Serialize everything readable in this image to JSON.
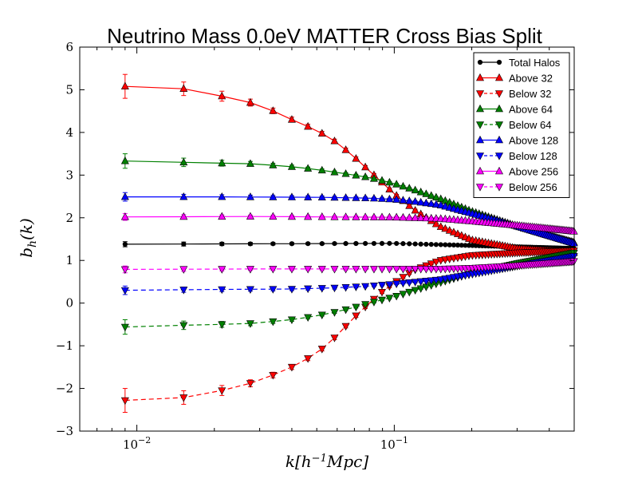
{
  "chart_data": {
    "type": "line",
    "title": "Neutrino Mass 0.0eV MATTER Cross Bias Split",
    "xlabel": "k[h⁻¹Mpc]",
    "ylabel": "b_h(k)",
    "xscale": "log",
    "xlim": [
      0.006,
      0.5
    ],
    "ylim": [
      -3,
      6
    ],
    "yticks": [
      "−3",
      "−2",
      "−1",
      "0",
      "1",
      "2",
      "3",
      "4",
      "5",
      "6"
    ],
    "xticks": [
      {
        "value": 0.01,
        "base": "10",
        "exp": "−2"
      },
      {
        "value": 0.1,
        "base": "10",
        "exp": "−1"
      }
    ],
    "legend_position": "upper right",
    "series": [
      {
        "name": "Total Halos",
        "color": "#000000",
        "marker": "circle",
        "linestyle": "solid",
        "anchors": [
          [
            0.009,
            1.38
          ],
          [
            0.1,
            1.4
          ],
          [
            0.2,
            1.35
          ],
          [
            0.5,
            1.28
          ]
        ],
        "err_anchors": [
          [
            0.009,
            0.06
          ],
          [
            0.03,
            0.03
          ],
          [
            0.1,
            0.01
          ],
          [
            0.5,
            0.01
          ]
        ]
      },
      {
        "name": "Above 32",
        "color": "#ff0000",
        "marker": "triangle-up",
        "linestyle": "solid",
        "anchors": [
          [
            0.009,
            5.08
          ],
          [
            0.015,
            5.03
          ],
          [
            0.021,
            4.86
          ],
          [
            0.027,
            4.72
          ],
          [
            0.034,
            4.5
          ],
          [
            0.041,
            4.27
          ],
          [
            0.05,
            4.05
          ],
          [
            0.06,
            3.76
          ],
          [
            0.07,
            3.42
          ],
          [
            0.08,
            3.1
          ],
          [
            0.09,
            2.82
          ],
          [
            0.1,
            2.56
          ],
          [
            0.12,
            2.18
          ],
          [
            0.15,
            1.8
          ],
          [
            0.2,
            1.48
          ],
          [
            0.3,
            1.28
          ],
          [
            0.5,
            1.18
          ]
        ],
        "err_anchors": [
          [
            0.009,
            0.28
          ],
          [
            0.015,
            0.16
          ],
          [
            0.021,
            0.12
          ],
          [
            0.03,
            0.07
          ],
          [
            0.05,
            0.05
          ],
          [
            0.1,
            0.03
          ],
          [
            0.5,
            0.01
          ]
        ]
      },
      {
        "name": "Below 32",
        "color": "#ff0000",
        "marker": "triangle-down",
        "linestyle": "dashed",
        "anchors": [
          [
            0.009,
            -2.28
          ],
          [
            0.015,
            -2.22
          ],
          [
            0.021,
            -2.06
          ],
          [
            0.027,
            -1.9
          ],
          [
            0.034,
            -1.68
          ],
          [
            0.041,
            -1.47
          ],
          [
            0.048,
            -1.24
          ],
          [
            0.055,
            -0.98
          ],
          [
            0.062,
            -0.66
          ],
          [
            0.07,
            -0.33
          ],
          [
            0.08,
            0.0
          ],
          [
            0.09,
            0.27
          ],
          [
            0.1,
            0.48
          ],
          [
            0.12,
            0.78
          ],
          [
            0.15,
            1.0
          ],
          [
            0.2,
            1.12
          ],
          [
            0.3,
            1.18
          ],
          [
            0.5,
            1.23
          ]
        ],
        "err_anchors": [
          [
            0.009,
            0.28
          ],
          [
            0.015,
            0.16
          ],
          [
            0.021,
            0.12
          ],
          [
            0.03,
            0.07
          ],
          [
            0.05,
            0.05
          ],
          [
            0.1,
            0.03
          ],
          [
            0.5,
            0.01
          ]
        ]
      },
      {
        "name": "Above 64",
        "color": "#008000",
        "marker": "triangle-up",
        "linestyle": "solid",
        "anchors": [
          [
            0.009,
            3.33
          ],
          [
            0.015,
            3.3
          ],
          [
            0.021,
            3.28
          ],
          [
            0.027,
            3.27
          ],
          [
            0.034,
            3.23
          ],
          [
            0.041,
            3.19
          ],
          [
            0.05,
            3.13
          ],
          [
            0.06,
            3.06
          ],
          [
            0.07,
            3.0
          ],
          [
            0.08,
            2.94
          ],
          [
            0.09,
            2.87
          ],
          [
            0.1,
            2.8
          ],
          [
            0.12,
            2.65
          ],
          [
            0.15,
            2.45
          ],
          [
            0.2,
            2.15
          ],
          [
            0.3,
            1.8
          ],
          [
            0.5,
            1.42
          ]
        ],
        "err_anchors": [
          [
            0.009,
            0.17
          ],
          [
            0.015,
            0.1
          ],
          [
            0.021,
            0.07
          ],
          [
            0.03,
            0.05
          ],
          [
            0.05,
            0.03
          ],
          [
            0.1,
            0.02
          ],
          [
            0.5,
            0.01
          ]
        ]
      },
      {
        "name": "Below 64",
        "color": "#008000",
        "marker": "triangle-down",
        "linestyle": "dashed",
        "anchors": [
          [
            0.009,
            -0.56
          ],
          [
            0.015,
            -0.52
          ],
          [
            0.021,
            -0.5
          ],
          [
            0.027,
            -0.48
          ],
          [
            0.034,
            -0.43
          ],
          [
            0.041,
            -0.38
          ],
          [
            0.05,
            -0.3
          ],
          [
            0.06,
            -0.2
          ],
          [
            0.07,
            -0.1
          ],
          [
            0.08,
            0.0
          ],
          [
            0.09,
            0.08
          ],
          [
            0.1,
            0.15
          ],
          [
            0.12,
            0.3
          ],
          [
            0.15,
            0.48
          ],
          [
            0.2,
            0.7
          ],
          [
            0.3,
            0.93
          ],
          [
            0.5,
            1.18
          ]
        ],
        "err_anchors": [
          [
            0.009,
            0.17
          ],
          [
            0.015,
            0.1
          ],
          [
            0.021,
            0.07
          ],
          [
            0.03,
            0.05
          ],
          [
            0.05,
            0.03
          ],
          [
            0.1,
            0.02
          ],
          [
            0.5,
            0.01
          ]
        ]
      },
      {
        "name": "Above 128",
        "color": "#0000ff",
        "marker": "triangle-up",
        "linestyle": "solid",
        "anchors": [
          [
            0.009,
            2.49
          ],
          [
            0.02,
            2.49
          ],
          [
            0.05,
            2.48
          ],
          [
            0.08,
            2.46
          ],
          [
            0.1,
            2.43
          ],
          [
            0.12,
            2.38
          ],
          [
            0.15,
            2.3
          ],
          [
            0.2,
            2.1
          ],
          [
            0.3,
            1.8
          ],
          [
            0.5,
            1.4
          ]
        ],
        "err_anchors": [
          [
            0.009,
            0.1
          ],
          [
            0.015,
            0.06
          ],
          [
            0.03,
            0.04
          ],
          [
            0.1,
            0.02
          ],
          [
            0.5,
            0.01
          ]
        ]
      },
      {
        "name": "Below 128",
        "color": "#0000ff",
        "marker": "triangle-down",
        "linestyle": "dashed",
        "anchors": [
          [
            0.009,
            0.3
          ],
          [
            0.02,
            0.32
          ],
          [
            0.04,
            0.33
          ],
          [
            0.06,
            0.36
          ],
          [
            0.08,
            0.4
          ],
          [
            0.1,
            0.45
          ],
          [
            0.15,
            0.55
          ],
          [
            0.2,
            0.68
          ],
          [
            0.3,
            0.87
          ],
          [
            0.5,
            1.1
          ]
        ],
        "err_anchors": [
          [
            0.009,
            0.1
          ],
          [
            0.015,
            0.06
          ],
          [
            0.03,
            0.04
          ],
          [
            0.1,
            0.02
          ],
          [
            0.5,
            0.01
          ]
        ]
      },
      {
        "name": "Above 256",
        "color": "#ff00ff",
        "marker": "triangle-up",
        "linestyle": "solid",
        "anchors": [
          [
            0.009,
            2.02
          ],
          [
            0.03,
            2.03
          ],
          [
            0.1,
            2.01
          ],
          [
            0.15,
            1.98
          ],
          [
            0.2,
            1.92
          ],
          [
            0.3,
            1.82
          ],
          [
            0.5,
            1.68
          ]
        ],
        "err_anchors": [
          [
            0.009,
            0.08
          ],
          [
            0.015,
            0.05
          ],
          [
            0.03,
            0.03
          ],
          [
            0.1,
            0.02
          ],
          [
            0.5,
            0.01
          ]
        ]
      },
      {
        "name": "Below 256",
        "color": "#ff00ff",
        "marker": "triangle-down",
        "linestyle": "dashed",
        "anchors": [
          [
            0.009,
            0.79
          ],
          [
            0.03,
            0.8
          ],
          [
            0.1,
            0.8
          ],
          [
            0.15,
            0.8
          ],
          [
            0.2,
            0.82
          ],
          [
            0.3,
            0.88
          ],
          [
            0.5,
            0.98
          ]
        ],
        "err_anchors": [
          [
            0.009,
            0.08
          ],
          [
            0.015,
            0.05
          ],
          [
            0.03,
            0.03
          ],
          [
            0.1,
            0.02
          ],
          [
            0.5,
            0.01
          ]
        ]
      }
    ]
  }
}
